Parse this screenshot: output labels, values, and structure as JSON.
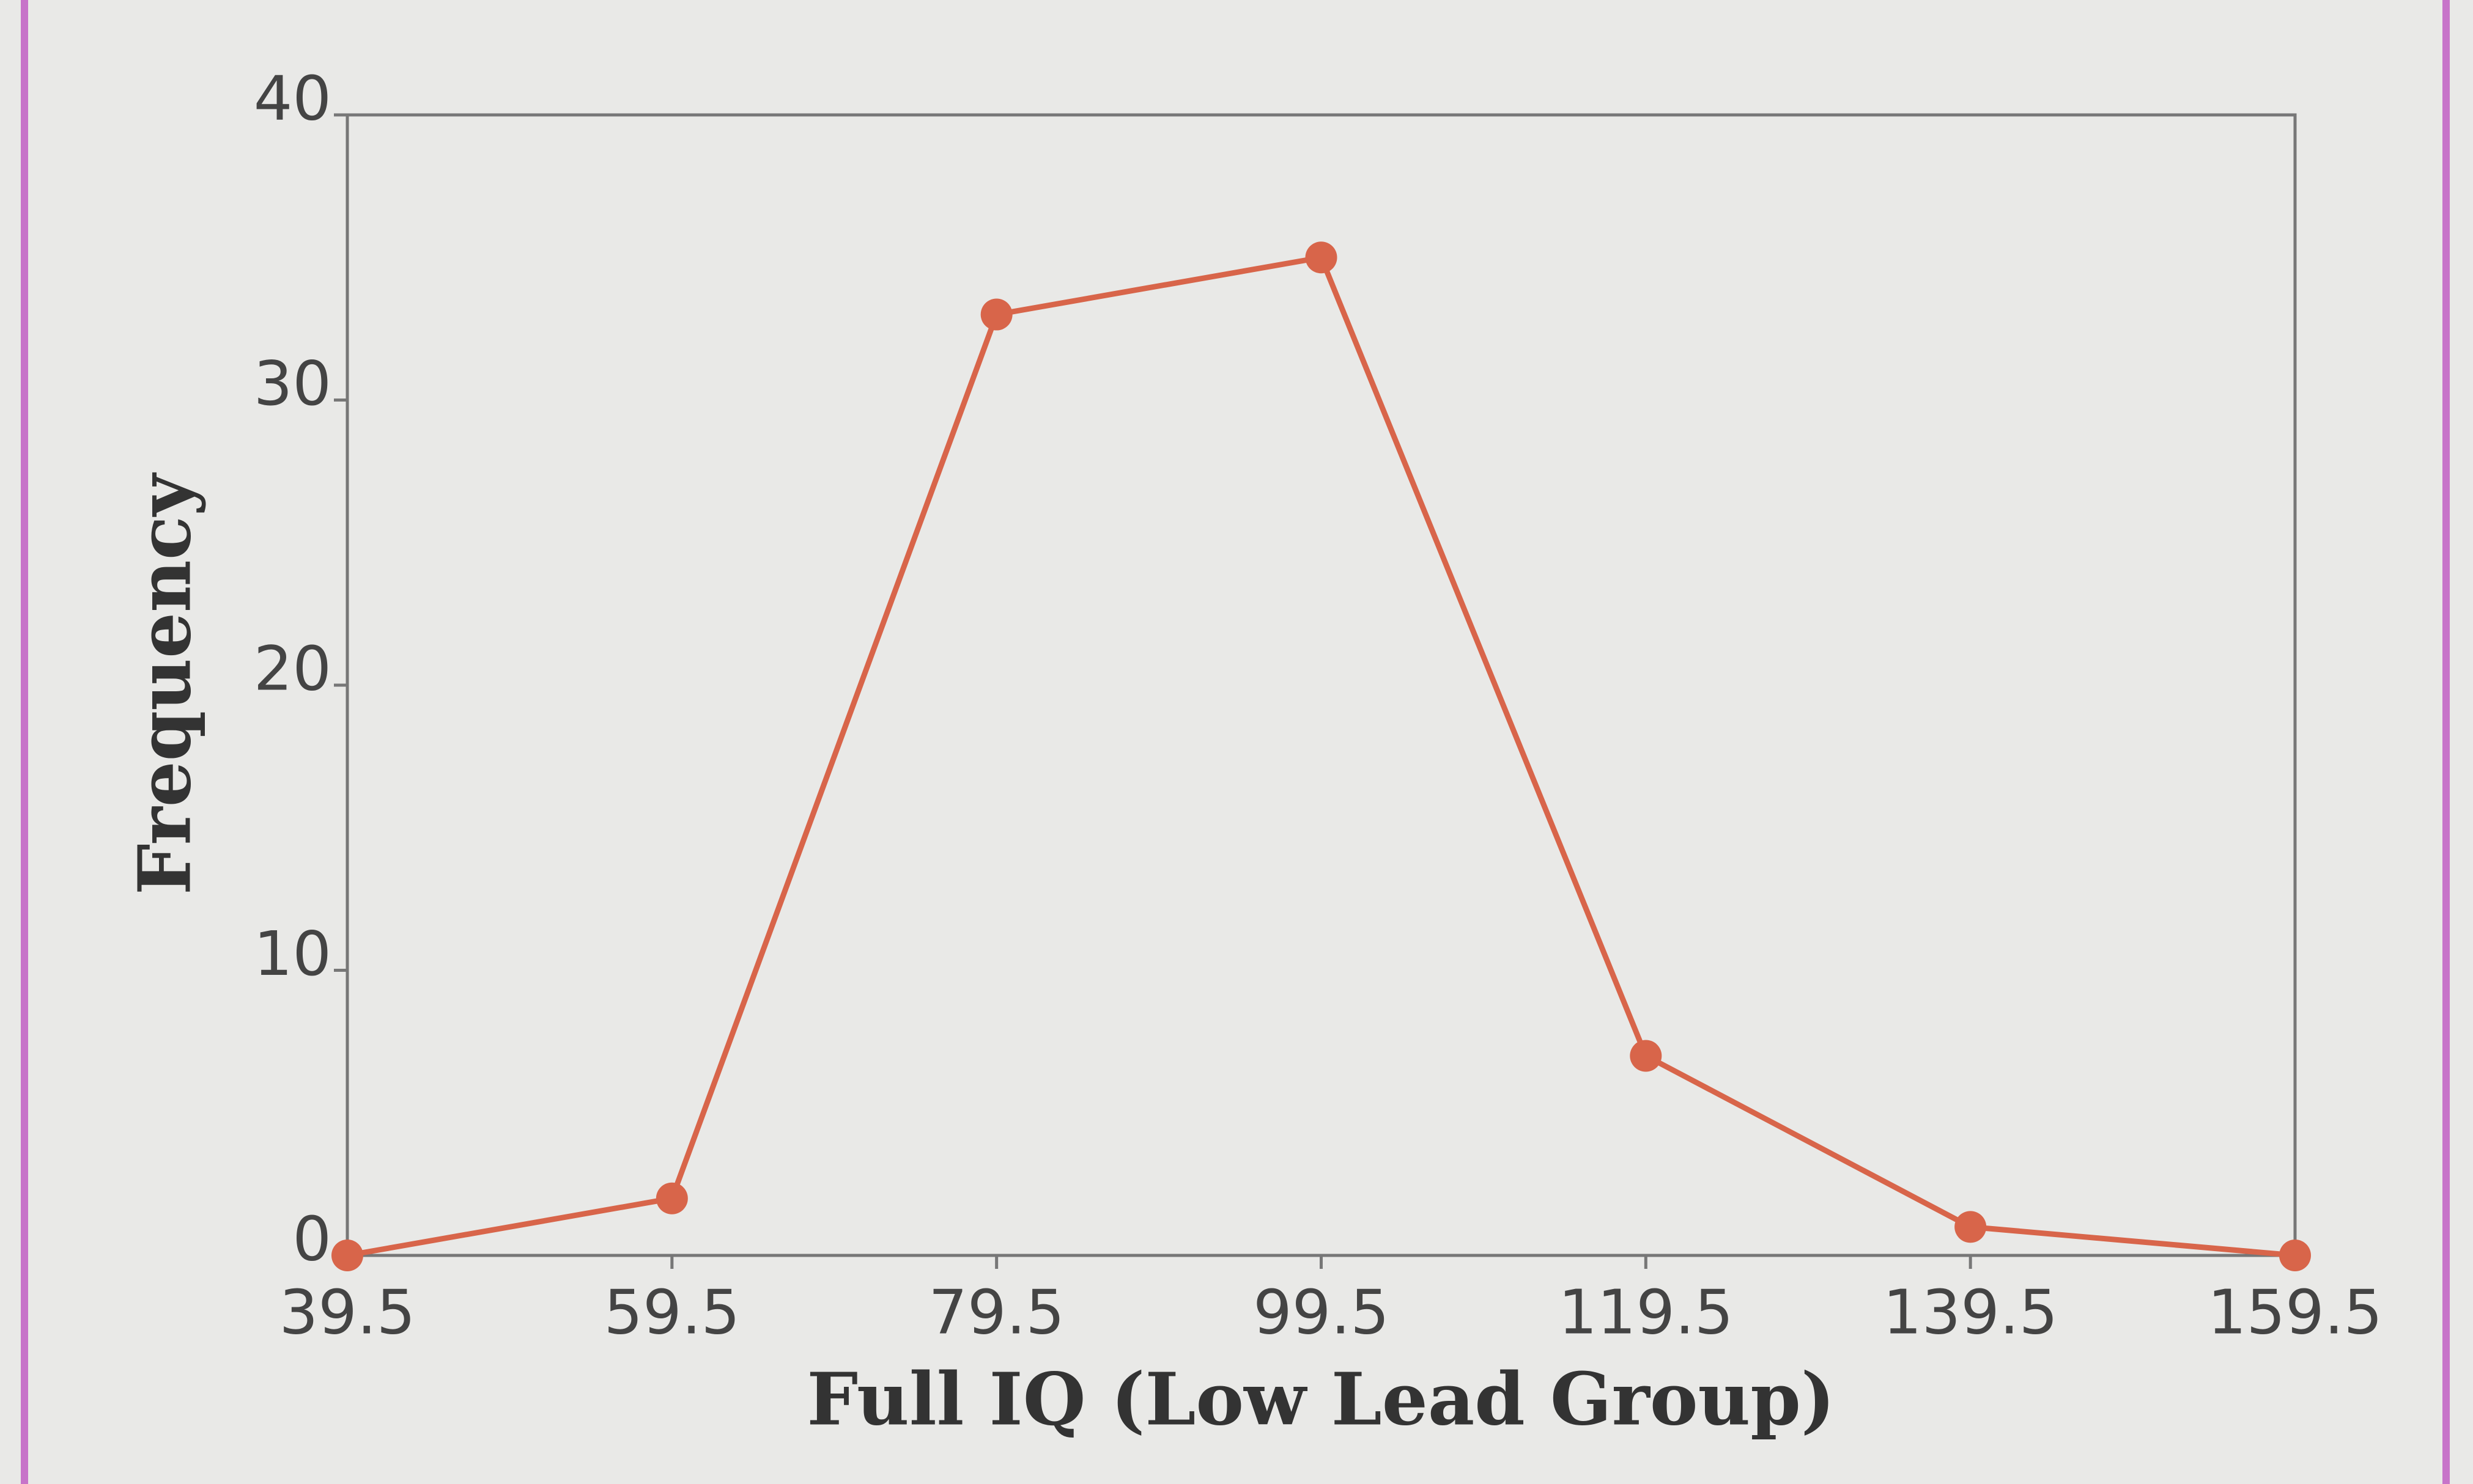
{
  "chart_data": {
    "type": "line",
    "xlabel": "Full IQ (Low Lead Group)",
    "ylabel": "Frequency",
    "x": [
      39.5,
      59.5,
      79.5,
      99.5,
      119.5,
      139.5,
      159.5
    ],
    "values": [
      0,
      2,
      33,
      35,
      7,
      1,
      0
    ],
    "color": "#d8654a",
    "xlim": [
      39.5,
      159.5
    ],
    "xticks": [
      39.5,
      59.5,
      79.5,
      99.5,
      119.5,
      139.5,
      159.5
    ],
    "ylim": [
      0,
      40
    ],
    "yticks": [
      0,
      10,
      20,
      30,
      40
    ],
    "grid": false
  }
}
